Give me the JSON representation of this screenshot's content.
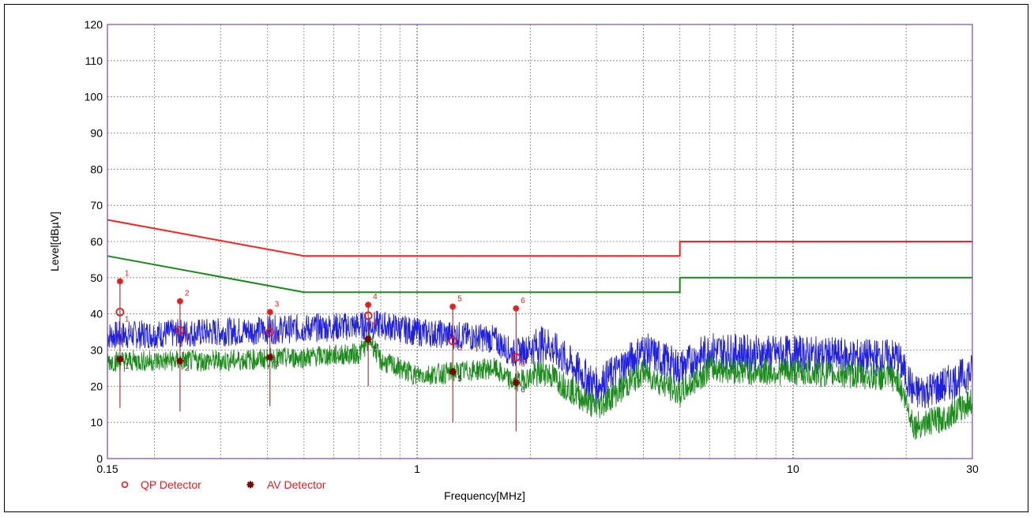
{
  "chart_data": {
    "type": "line",
    "title": "",
    "xlabel": "Frequency[MHz]",
    "ylabel": "Level[dBµV]",
    "x_scale": "log",
    "xlim": [
      0.15,
      30
    ],
    "ylim": [
      0,
      120
    ],
    "grid": true,
    "x_tick_labels": [
      {
        "value": 0.15,
        "label": "0.15"
      },
      {
        "value": 1,
        "label": "1"
      },
      {
        "value": 10,
        "label": "10"
      },
      {
        "value": 30,
        "label": "30"
      }
    ],
    "y_ticks": [
      0,
      10,
      20,
      30,
      40,
      50,
      60,
      70,
      80,
      90,
      100,
      110,
      120
    ],
    "limit_lines": [
      {
        "color": "#ff2020",
        "points": [
          [
            0.15,
            66
          ],
          [
            0.5,
            56
          ],
          [
            5,
            56
          ],
          [
            5,
            60
          ],
          [
            30,
            60
          ]
        ]
      },
      {
        "color": "#1a8a1a",
        "points": [
          [
            0.15,
            56
          ],
          [
            0.5,
            46
          ],
          [
            5,
            46
          ],
          [
            5,
            50
          ],
          [
            30,
            50
          ]
        ]
      }
    ],
    "series": [
      {
        "color": "#2020e0",
        "envelope": [
          [
            0.15,
            34
          ],
          [
            0.3,
            35
          ],
          [
            0.5,
            36
          ],
          [
            0.8,
            37
          ],
          [
            1.0,
            35
          ],
          [
            1.3,
            34
          ],
          [
            1.6,
            33
          ],
          [
            1.8,
            29
          ],
          [
            2.2,
            32
          ],
          [
            3.0,
            20
          ],
          [
            4.0,
            30
          ],
          [
            5.0,
            25
          ],
          [
            6.0,
            30
          ],
          [
            8.0,
            29
          ],
          [
            10.0,
            29
          ],
          [
            15.0,
            28
          ],
          [
            19.0,
            28
          ],
          [
            21.0,
            18
          ],
          [
            25.0,
            20
          ],
          [
            30.0,
            24
          ]
        ],
        "amplitude": 4
      },
      {
        "color": "#1a8a1a",
        "envelope": [
          [
            0.15,
            27
          ],
          [
            0.3,
            27
          ],
          [
            0.5,
            28
          ],
          [
            0.7,
            29
          ],
          [
            0.75,
            33
          ],
          [
            0.8,
            27
          ],
          [
            1.0,
            23
          ],
          [
            1.3,
            24
          ],
          [
            1.6,
            25
          ],
          [
            1.8,
            21
          ],
          [
            2.2,
            24
          ],
          [
            3.0,
            14
          ],
          [
            4.0,
            24
          ],
          [
            5.0,
            18
          ],
          [
            6.0,
            25
          ],
          [
            8.0,
            24
          ],
          [
            10.0,
            24
          ],
          [
            15.0,
            23
          ],
          [
            19.0,
            22
          ],
          [
            21.0,
            9
          ],
          [
            25.0,
            11
          ],
          [
            30.0,
            16
          ]
        ],
        "amplitude": 3
      }
    ],
    "peak_markers": [
      {
        "id": "1",
        "x": 0.162,
        "peak": 49,
        "qp": 40.5,
        "av": 27.5,
        "base": 14
      },
      {
        "id": "2",
        "x": 0.234,
        "peak": 43.5,
        "qp": 35.5,
        "av": 27,
        "base": 13
      },
      {
        "id": "3",
        "x": 0.406,
        "peak": 40.5,
        "qp": 35,
        "av": 28,
        "base": 14.5
      },
      {
        "id": "4",
        "x": 0.741,
        "peak": 42.5,
        "qp": 39.5,
        "av": 33,
        "base": 20
      },
      {
        "id": "5",
        "x": 1.244,
        "peak": 42,
        "qp": 32.5,
        "av": 24,
        "base": 10
      },
      {
        "id": "6",
        "x": 1.833,
        "peak": 41.5,
        "qp": 28,
        "av": 21,
        "base": 7.5
      }
    ],
    "legend": {
      "placement": "bottom-left",
      "qp": {
        "label": "QP Detector",
        "color": "#e02020"
      },
      "av": {
        "label": "AV Detector",
        "color": "#7a0000"
      }
    },
    "colors": {
      "plot_border": "#7a4aa8",
      "grid": "#808080",
      "marker": "#e02020",
      "stem": "#8a1a1a"
    }
  }
}
